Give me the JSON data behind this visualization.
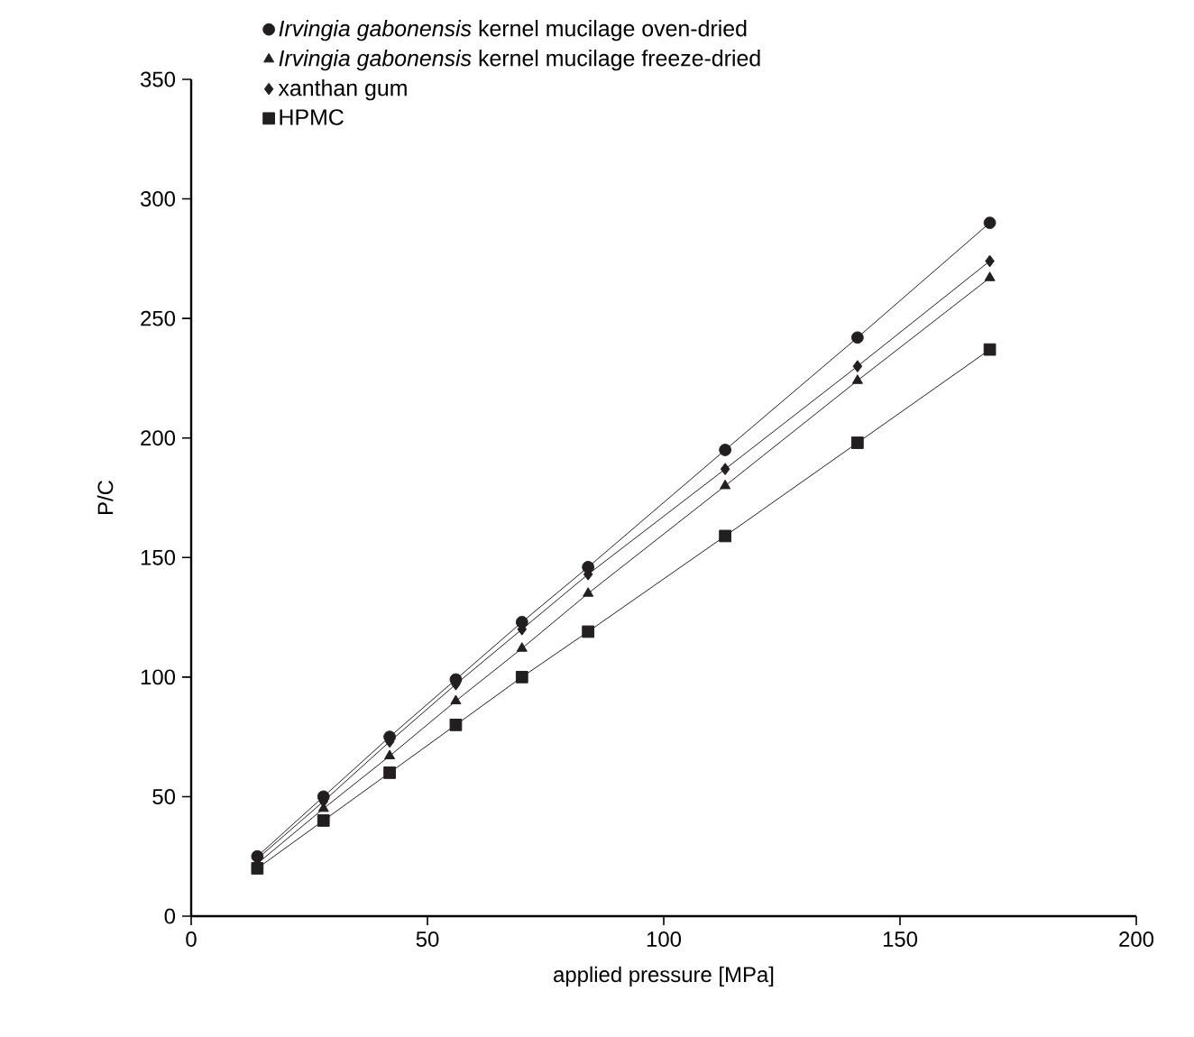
{
  "chart_data": {
    "type": "line",
    "xlabel": "applied pressure [MPa]",
    "ylabel": "P/C",
    "xlim": [
      0,
      200
    ],
    "xticks": [
      0,
      50,
      100,
      150,
      200
    ],
    "ylim": [
      0,
      350
    ],
    "yticks": [
      0,
      50,
      100,
      150,
      200,
      250,
      300,
      350
    ],
    "x": [
      14,
      28,
      42,
      56,
      70,
      84,
      113,
      141,
      169
    ],
    "legend": "top",
    "grid": false,
    "line_style": "solid",
    "series": [
      {
        "name": "*Irvingia gabonensis* kernel mucilage oven-dried",
        "color": "#231f20",
        "marker": "circle",
        "values": [
          25,
          50,
          75,
          99,
          123,
          146,
          195,
          242,
          290
        ]
      },
      {
        "name": "*Irvingia gabonensis* kernel mucilage freeze-dried",
        "color": "#231f20",
        "marker": "triangle",
        "values": [
          22,
          45,
          67,
          90,
          112,
          135,
          180,
          224,
          267
        ]
      },
      {
        "name": "xanthan gum",
        "color": "#231f20",
        "marker": "diamond",
        "values": [
          24,
          48,
          73,
          97,
          120,
          143,
          187,
          230,
          274
        ]
      },
      {
        "name": "HPMC",
        "color": "#231f20",
        "marker": "square",
        "values": [
          20,
          40,
          60,
          80,
          100,
          119,
          159,
          198,
          237
        ]
      }
    ]
  }
}
